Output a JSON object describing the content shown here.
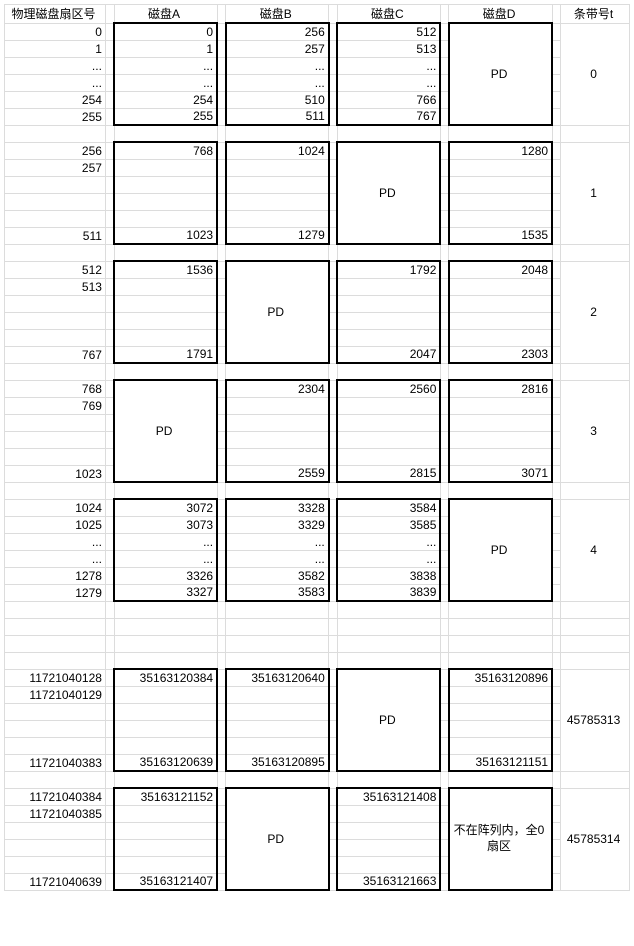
{
  "headers": {
    "sector": "物理磁盘扇区号",
    "diskA": "磁盘A",
    "diskB": "磁盘B",
    "diskC": "磁盘C",
    "diskD": "磁盘D",
    "stripe": "条带号t"
  },
  "pd_label": "PD",
  "not_in_array_label": "不在阵列内，全0扇区",
  "colors": {
    "grid": "#dcdcdc",
    "box": "#000000",
    "bg": "#ffffff",
    "text": "#000000"
  },
  "font_size": 12,
  "col_widths": {
    "sector": 94,
    "gap": 8,
    "disk": 96,
    "stripe": 64
  },
  "stripes": [
    {
      "t": "0",
      "pd_col": "D",
      "sector_rows": [
        "0",
        "1",
        "...",
        "...",
        "254",
        "255"
      ],
      "A": [
        "0",
        "1",
        "...",
        "...",
        "254",
        "255"
      ],
      "B": [
        "256",
        "257",
        "...",
        "...",
        "510",
        "511"
      ],
      "C": [
        "512",
        "513",
        "...",
        "...",
        "766",
        "767"
      ],
      "D": []
    },
    {
      "t": "1",
      "pd_col": "C",
      "sector_rows": [
        "256",
        "257",
        "",
        "",
        "",
        "511"
      ],
      "A": [
        "768",
        "",
        "",
        "",
        "",
        "1023"
      ],
      "B": [
        "1024",
        "",
        "",
        "",
        "",
        "1279"
      ],
      "C": [],
      "D": [
        "1280",
        "",
        "",
        "",
        "",
        "1535"
      ]
    },
    {
      "t": "2",
      "pd_col": "B",
      "sector_rows": [
        "512",
        "513",
        "",
        "",
        "",
        "767"
      ],
      "A": [
        "1536",
        "",
        "",
        "",
        "",
        "1791"
      ],
      "B": [],
      "C": [
        "1792",
        "",
        "",
        "",
        "",
        "2047"
      ],
      "D": [
        "2048",
        "",
        "",
        "",
        "",
        "2303"
      ]
    },
    {
      "t": "3",
      "pd_col": "A",
      "sector_rows": [
        "768",
        "769",
        "",
        "",
        "",
        "1023"
      ],
      "A": [],
      "B": [
        "2304",
        "",
        "",
        "",
        "",
        "2559"
      ],
      "C": [
        "2560",
        "",
        "",
        "",
        "",
        "2815"
      ],
      "D": [
        "2816",
        "",
        "",
        "",
        "",
        "3071"
      ]
    },
    {
      "t": "4",
      "pd_col": "D",
      "sector_rows": [
        "1024",
        "1025",
        "...",
        "...",
        "1278",
        "1279"
      ],
      "A": [
        "3072",
        "3073",
        "...",
        "...",
        "3326",
        "3327"
      ],
      "B": [
        "3328",
        "3329",
        "...",
        "...",
        "3582",
        "3583"
      ],
      "C": [
        "3584",
        "3585",
        "...",
        "...",
        "3838",
        "3839"
      ],
      "D": []
    },
    {
      "t": "45785313",
      "pd_col": "C",
      "sector_rows": [
        "11721040128",
        "11721040129",
        "",
        "",
        "",
        "11721040383"
      ],
      "A": [
        "35163120384",
        "",
        "",
        "",
        "",
        "35163120639"
      ],
      "B": [
        "35163120640",
        "",
        "",
        "",
        "",
        "35163120895"
      ],
      "C": [],
      "D": [
        "35163120896",
        "",
        "",
        "",
        "",
        "35163121151"
      ]
    },
    {
      "t": "45785314",
      "pd_col": "B",
      "d_special": true,
      "sector_rows": [
        "11721040384",
        "11721040385",
        "",
        "",
        "",
        "11721040639"
      ],
      "A": [
        "35163121152",
        "",
        "",
        "",
        "",
        "35163121407"
      ],
      "B": [],
      "C": [
        "35163121408",
        "",
        "",
        "",
        "",
        "35163121663"
      ],
      "D": []
    }
  ],
  "ellipsis_gap_rows": 3
}
